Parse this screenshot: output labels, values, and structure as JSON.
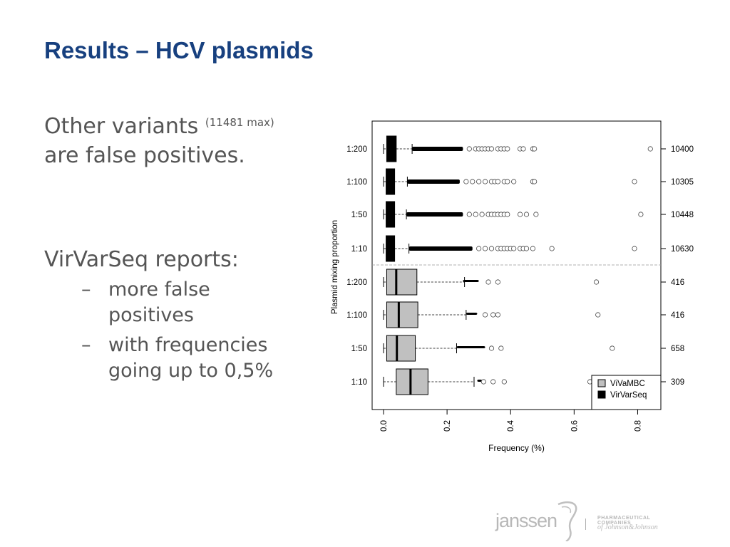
{
  "slide": {
    "title": "Results – HCV plasmids",
    "para1_main": "Other variants",
    "para1_small": "(11481 max)",
    "para1_rest": "are false positives.",
    "para2": "VirVarSeq reports:",
    "bullets": [
      "more false positives",
      "with frequencies going up to 0,5%"
    ],
    "logo": {
      "name": "janssen",
      "line1": "PHARMACEUTICAL COMPANIES",
      "line2": "of Johnson&Johnson"
    }
  },
  "chart_data": {
    "type": "boxplot",
    "orientation": "horizontal",
    "xlabel": "Frequency (%)",
    "ylabel": "Plasmid mixing proportion",
    "xlim": [
      0,
      0.9
    ],
    "xticks": [
      0.0,
      0.2,
      0.4,
      0.6,
      0.8
    ],
    "legend": {
      "placement": "bottom-right",
      "entries": [
        {
          "name": "ViVaMBC",
          "color": "#c0c0c0"
        },
        {
          "name": "VirVarSeq",
          "color": "#000000"
        }
      ]
    },
    "categories": [
      "1:200",
      "1:100",
      "1:50",
      "1:10",
      "1:200",
      "1:100",
      "1:50",
      "1:10"
    ],
    "right_labels": [
      "10400",
      "10305",
      "10448",
      "10630",
      "416",
      "416",
      "658",
      "309"
    ],
    "series": [
      {
        "name": "VirVarSeq",
        "color": "#000000",
        "boxes": [
          {
            "cat": "1:200",
            "min": 0.0,
            "q1": 0.01,
            "median": 0.025,
            "q3": 0.04,
            "wmax": 0.09,
            "outlier_range": [
              0.09,
              0.25
            ],
            "outliers": [
              0.27,
              0.29,
              0.3,
              0.31,
              0.32,
              0.33,
              0.34,
              0.36,
              0.37,
              0.38,
              0.39,
              0.43,
              0.44,
              0.47,
              0.475,
              0.84
            ]
          },
          {
            "cat": "1:100",
            "min": 0.0,
            "q1": 0.008,
            "median": 0.02,
            "q3": 0.035,
            "wmax": 0.075,
            "outlier_range": [
              0.075,
              0.24
            ],
            "outliers": [
              0.26,
              0.28,
              0.3,
              0.32,
              0.34,
              0.35,
              0.36,
              0.38,
              0.39,
              0.41,
              0.47,
              0.475,
              0.79
            ]
          },
          {
            "cat": "1:50",
            "min": 0.0,
            "q1": 0.008,
            "median": 0.02,
            "q3": 0.035,
            "wmax": 0.072,
            "outlier_range": [
              0.072,
              0.25
            ],
            "outliers": [
              0.27,
              0.29,
              0.31,
              0.33,
              0.34,
              0.35,
              0.36,
              0.37,
              0.38,
              0.39,
              0.43,
              0.45,
              0.48,
              0.81
            ]
          },
          {
            "cat": "1:10",
            "min": 0.0,
            "q1": 0.008,
            "median": 0.02,
            "q3": 0.035,
            "wmax": 0.08,
            "outlier_range": [
              0.08,
              0.28
            ],
            "outliers": [
              0.3,
              0.32,
              0.34,
              0.36,
              0.37,
              0.38,
              0.39,
              0.4,
              0.41,
              0.43,
              0.44,
              0.45,
              0.47,
              0.53,
              0.79
            ]
          }
        ]
      },
      {
        "name": "ViVaMBC",
        "color": "#c0c0c0",
        "boxes": [
          {
            "cat": "1:200",
            "min": 0.0,
            "q1": 0.01,
            "median": 0.04,
            "q3": 0.105,
            "wmax": 0.255,
            "outlier_range": [
              0.25,
              0.3
            ],
            "outliers": [
              0.33,
              0.36,
              0.67
            ]
          },
          {
            "cat": "1:100",
            "min": 0.0,
            "q1": 0.01,
            "median": 0.048,
            "q3": 0.108,
            "wmax": 0.26,
            "outlier_range": [
              0.26,
              0.295
            ],
            "outliers": [
              0.32,
              0.345,
              0.36,
              0.675
            ]
          },
          {
            "cat": "1:50",
            "min": 0.0,
            "q1": 0.01,
            "median": 0.042,
            "q3": 0.1,
            "wmax": 0.23,
            "outlier_range": [
              0.23,
              0.32
            ],
            "outliers": [
              0.34,
              0.37,
              0.72
            ]
          },
          {
            "cat": "1:10",
            "min": 0.0,
            "q1": 0.04,
            "median": 0.085,
            "q3": 0.14,
            "wmax": 0.285,
            "outlier_range": [
              0.295,
              0.31
            ],
            "outliers": [
              0.315,
              0.345,
              0.38,
              0.65
            ]
          }
        ]
      }
    ]
  }
}
